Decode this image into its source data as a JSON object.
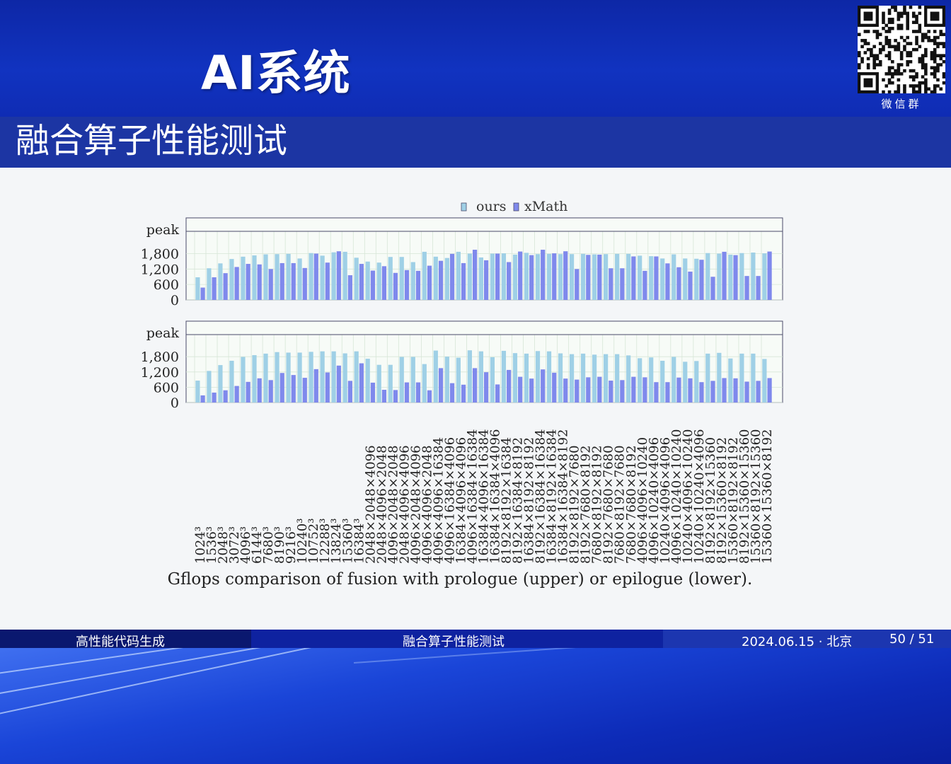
{
  "header": {
    "brand": "AI系统",
    "qr_caption": "微信群",
    "slide_title": "融合算子性能测试"
  },
  "footer": {
    "left": "高性能代码生成",
    "center": "融合算子性能测试",
    "date_place": "2024.06.15 · 北京",
    "page": "50 / 51"
  },
  "colors": {
    "ours": "#9fd0e6",
    "xmath": "#7f89ec",
    "axis": "#4a4a6a",
    "grid": "#d7e6d7"
  },
  "chart_data": [
    {
      "type": "bar",
      "panel": "upper",
      "ylabel": "peak",
      "yticks": [
        0,
        600,
        1200,
        1800
      ],
      "ylim": [
        0,
        2500
      ],
      "legend": [
        "ours",
        "xMath"
      ],
      "legend_position": "top-center",
      "grid": true,
      "categories": [
        "1024³",
        "1536³",
        "2048³",
        "3072³",
        "4096³",
        "6144³",
        "7680³",
        "8190³",
        "9216³",
        "10240³",
        "10752³",
        "12288³",
        "13824³",
        "15360³",
        "16384³",
        "2048×2048×4096",
        "2048×4096×2048",
        "4096×2048×2048",
        "2048×4096×4096",
        "4096×2048×4096",
        "4096×4096×2048",
        "4096×4096×16384",
        "4096×16384×4096",
        "16384×4096×4096",
        "4096×16384×16384",
        "16384×4096×16384",
        "16384×16384×4096",
        "8192×8192×16384",
        "8192×16384×8192",
        "16384×8192×8192",
        "8192×16384×16384",
        "16384×8192×16384",
        "16384×16384×8192",
        "8192×8192×7680",
        "8192×7680×8192",
        "7680×8192×8192",
        "8192×7680×7680",
        "7680×8192×7680",
        "7680×7680×8192",
        "4096×4096×10240",
        "4096×10240×4096",
        "10240×4096×4096",
        "4096×10240×10240",
        "10240×4096×10240",
        "10240×10240×4096",
        "8192×8192×15360",
        "8192×15360×8192",
        "15360×8192×8192",
        "8192×15360×15360",
        "15360×8192×15360",
        "15360×15360×8192"
      ],
      "series": [
        {
          "name": "ours",
          "values": [
            880,
            1230,
            1420,
            1590,
            1680,
            1730,
            1770,
            1780,
            1790,
            1610,
            1820,
            1720,
            1850,
            1870,
            1640,
            1490,
            1450,
            1670,
            1670,
            1470,
            1870,
            1680,
            1630,
            1870,
            1800,
            1650,
            1800,
            1810,
            1760,
            1830,
            1780,
            1790,
            1780,
            1780,
            1790,
            1770,
            1780,
            1790,
            1790,
            1720,
            1700,
            1610,
            1770,
            1610,
            1600,
            1820,
            1800,
            1760,
            1820,
            1840,
            1810
          ]
        },
        {
          "name": "xMath",
          "values": [
            480,
            880,
            1040,
            1280,
            1400,
            1380,
            1200,
            1430,
            1430,
            1240,
            1800,
            1450,
            1890,
            960,
            1400,
            1140,
            1310,
            1050,
            1160,
            1130,
            1330,
            1520,
            1790,
            1430,
            1950,
            1540,
            1800,
            1470,
            1880,
            1740,
            1950,
            1810,
            1890,
            1200,
            1750,
            1760,
            1230,
            1230,
            1690,
            1130,
            1690,
            1420,
            1270,
            1100,
            1560,
            900,
            1870,
            1740,
            930,
            930,
            1880
          ]
        }
      ]
    },
    {
      "type": "bar",
      "panel": "lower",
      "ylabel": "peak",
      "yticks": [
        0,
        600,
        1200,
        1800
      ],
      "ylim": [
        0,
        2500
      ],
      "grid": true,
      "categories": [
        "1024³",
        "1536³",
        "2048³",
        "3072³",
        "4096³",
        "6144³",
        "7680³",
        "8190³",
        "9216³",
        "10240³",
        "10752³",
        "12288³",
        "13824³",
        "15360³",
        "16384³",
        "2048×2048×4096",
        "2048×4096×2048",
        "4096×2048×2048",
        "2048×4096×4096",
        "4096×2048×4096",
        "4096×4096×2048",
        "4096×4096×16384",
        "4096×16384×4096",
        "16384×4096×4096",
        "4096×16384×16384",
        "16384×4096×16384",
        "16384×16384×4096",
        "8192×8192×16384",
        "8192×16384×8192",
        "16384×8192×8192",
        "8192×16384×16384",
        "16384×8192×16384",
        "16384×16384×8192",
        "8192×8192×7680",
        "8192×7680×8192",
        "7680×8192×8192",
        "8192×7680×7680",
        "7680×8192×7680",
        "7680×7680×8192",
        "4096×4096×10240",
        "4096×10240×4096",
        "10240×4096×4096",
        "4096×10240×10240",
        "10240×4096×10240",
        "10240×10240×4096",
        "8192×8192×15360",
        "8192×15360×8192",
        "15360×8192×8192",
        "8192×15360×15360",
        "15360×8192×15360",
        "15360×15360×8192"
      ],
      "series": [
        {
          "name": "ours",
          "values": [
            860,
            1240,
            1470,
            1640,
            1790,
            1860,
            1920,
            1980,
            1960,
            1960,
            1990,
            2010,
            2010,
            1930,
            2010,
            1720,
            1480,
            1480,
            1790,
            1790,
            1510,
            2040,
            1800,
            1760,
            2050,
            2010,
            1780,
            2030,
            1940,
            1920,
            2020,
            2010,
            1930,
            1900,
            1920,
            1880,
            1900,
            1900,
            1850,
            1740,
            1770,
            1640,
            1790,
            1600,
            1630,
            1920,
            1950,
            1730,
            1920,
            1920,
            1710
          ]
        },
        {
          "name": "xMath",
          "values": [
            280,
            390,
            480,
            650,
            810,
            950,
            880,
            1160,
            1080,
            970,
            1310,
            1180,
            1450,
            850,
            1540,
            780,
            500,
            490,
            790,
            790,
            480,
            1350,
            760,
            700,
            1350,
            1190,
            710,
            1280,
            1010,
            940,
            1300,
            1170,
            940,
            900,
            990,
            1010,
            860,
            880,
            1010,
            990,
            800,
            800,
            980,
            950,
            800,
            850,
            960,
            950,
            820,
            850,
            960
          ]
        }
      ]
    }
  ],
  "caption": "Gflops comparison of fusion with prologue (upper) or epilogue (lower)."
}
